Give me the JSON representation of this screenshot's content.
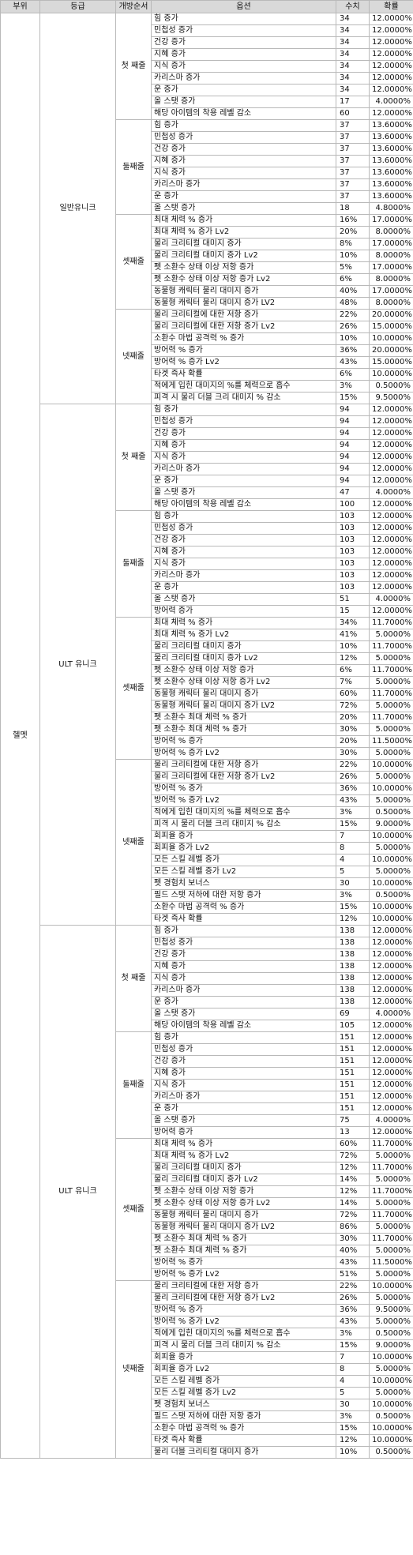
{
  "headers": [
    "부위",
    "등급",
    "개방순서",
    "옵션",
    "수치",
    "확률"
  ],
  "part": "헬멧",
  "grades": [
    {
      "grade": "일반유니크",
      "sections": [
        {
          "order": "첫 째줄",
          "rows": [
            [
              "힘 증가",
              "34",
              "12.0000%"
            ],
            [
              "민첩성 증가",
              "34",
              "12.0000%"
            ],
            [
              "건강 증가",
              "34",
              "12.0000%"
            ],
            [
              "지혜 증가",
              "34",
              "12.0000%"
            ],
            [
              "지식 증가",
              "34",
              "12.0000%"
            ],
            [
              "카리스마 증가",
              "34",
              "12.0000%"
            ],
            [
              "운 증가",
              "34",
              "12.0000%"
            ],
            [
              "올 스탯 증가",
              "17",
              "4.0000%"
            ],
            [
              "해당 아이템의 착용 레벨 감소",
              "60",
              "12.0000%"
            ]
          ]
        },
        {
          "order": "둘째줄",
          "rows": [
            [
              "힘 증가",
              "37",
              "13.6000%"
            ],
            [
              "민첩성 증가",
              "37",
              "13.6000%"
            ],
            [
              "건강 증가",
              "37",
              "13.6000%"
            ],
            [
              "지혜 증가",
              "37",
              "13.6000%"
            ],
            [
              "지식 증가",
              "37",
              "13.6000%"
            ],
            [
              "카리스마 증가",
              "37",
              "13.6000%"
            ],
            [
              "운 증가",
              "37",
              "13.6000%"
            ],
            [
              "올 스탯 증가",
              "18",
              "4.8000%"
            ]
          ]
        },
        {
          "order": "셋째줄",
          "rows": [
            [
              "최대 체력 % 증가",
              "16%",
              "17.0000%"
            ],
            [
              "최대 체력 % 증가 Lv2",
              "20%",
              "8.0000%"
            ],
            [
              "물리 크리티컬 대미지 증가",
              "8%",
              "17.0000%"
            ],
            [
              "물리 크리티컬 대미지 증가 Lv2",
              "10%",
              "8.0000%"
            ],
            [
              "펫 소환수 상태 이상 저항 증가",
              "5%",
              "17.0000%"
            ],
            [
              "펫 소환수 상태 이상 저항 증가 Lv2",
              "6%",
              "8.0000%"
            ],
            [
              "동물형 캐릭터 물리 대미지 증가",
              "40%",
              "17.0000%"
            ],
            [
              "동물형 캐릭터 물리 대미지 증가 LV2",
              "48%",
              "8.0000%"
            ]
          ]
        },
        {
          "order": "넷째줄",
          "rows": [
            [
              "물리 크리티컬에 대한 저항 증가",
              "22%",
              "20.0000%"
            ],
            [
              "물리 크리티컬에 대한 저항 증가 Lv2",
              "26%",
              "15.0000%"
            ],
            [
              "소환수 마법 공격력 % 증가",
              "10%",
              "10.0000%"
            ],
            [
              "방어력 % 증가",
              "36%",
              "20.0000%"
            ],
            [
              "방어력 % 증가 Lv2",
              "43%",
              "15.0000%"
            ],
            [
              "타겟 즉사 확률",
              "6%",
              "10.0000%"
            ],
            [
              "적에게 입힌 대미지의 %를 체력으로 흡수",
              "3%",
              "0.5000%"
            ],
            [
              "피격 시 물리 더블 크리 대미지 % 감소",
              "15%",
              "9.5000%"
            ]
          ]
        }
      ]
    },
    {
      "grade": "ULT 유니크",
      "sections": [
        {
          "order": "첫 째줄",
          "rows": [
            [
              "힘 증가",
              "94",
              "12.0000%"
            ],
            [
              "민첩성 증가",
              "94",
              "12.0000%"
            ],
            [
              "건강 증가",
              "94",
              "12.0000%"
            ],
            [
              "지혜 증가",
              "94",
              "12.0000%"
            ],
            [
              "지식 증가",
              "94",
              "12.0000%"
            ],
            [
              "카리스마 증가",
              "94",
              "12.0000%"
            ],
            [
              "운 증가",
              "94",
              "12.0000%"
            ],
            [
              "올 스탯 증가",
              "47",
              "4.0000%"
            ],
            [
              "해당 아이템의 착용 레벨 감소",
              "100",
              "12.0000%"
            ]
          ]
        },
        {
          "order": "둘째줄",
          "rows": [
            [
              "힘 증가",
              "103",
              "12.0000%"
            ],
            [
              "민첩성 증가",
              "103",
              "12.0000%"
            ],
            [
              "건강 증가",
              "103",
              "12.0000%"
            ],
            [
              "지혜 증가",
              "103",
              "12.0000%"
            ],
            [
              "지식 증가",
              "103",
              "12.0000%"
            ],
            [
              "카리스마 증가",
              "103",
              "12.0000%"
            ],
            [
              "운 증가",
              "103",
              "12.0000%"
            ],
            [
              "올 스탯 증가",
              "51",
              "4.0000%"
            ],
            [
              "방어력 증가",
              "15",
              "12.0000%"
            ]
          ]
        },
        {
          "order": "셋째줄",
          "rows": [
            [
              "최대 체력 % 증가",
              "34%",
              "11.7000%"
            ],
            [
              "최대 체력 % 증가 Lv2",
              "41%",
              "5.0000%"
            ],
            [
              "물리 크리티컬 대미지 증가",
              "10%",
              "11.7000%"
            ],
            [
              "물리 크리티컬 대미지 증가 Lv2",
              "12%",
              "5.0000%"
            ],
            [
              "펫 소환수 상태 이상 저항 증가",
              "6%",
              "11.7000%"
            ],
            [
              "펫 소환수 상태 이상 저항 증가 Lv2",
              "7%",
              "5.0000%"
            ],
            [
              "동물형 캐릭터 물리 대미지 증가",
              "60%",
              "11.7000%"
            ],
            [
              "동물형 캐릭터 물리 대미지 증가 LV2",
              "72%",
              "5.0000%"
            ],
            [
              "펫 소환수 최대 체력 % 증가",
              "20%",
              "11.7000%"
            ],
            [
              "펫 소환수 최대 체력 % 증가",
              "30%",
              "5.0000%"
            ],
            [
              "방어력 % 증가",
              "20%",
              "11.5000%"
            ],
            [
              "방어력 % 증가 Lv2",
              "30%",
              "5.0000%"
            ]
          ]
        },
        {
          "order": "넷째줄",
          "rows": [
            [
              "물리 크리티컬에 대한 저항 증가",
              "22%",
              "10.0000%"
            ],
            [
              "물리 크리티컬에 대한 저항 증가 Lv2",
              "26%",
              "5.0000%"
            ],
            [
              "방어력 % 증가",
              "36%",
              "10.0000%"
            ],
            [
              "방어력 % 증가 Lv2",
              "43%",
              "5.0000%"
            ],
            [
              "적에게 입힌 대미지의 %를 체력으로 흡수",
              "3%",
              "0.5000%"
            ],
            [
              "피격 시 물리 더블 크리 대미지 % 감소",
              "15%",
              "9.0000%"
            ],
            [
              "회피율 증가",
              "7",
              "10.0000%"
            ],
            [
              "회피율 증가 Lv2",
              "8",
              "5.0000%"
            ],
            [
              "모든 스킬 레벨 증가",
              "4",
              "10.0000%"
            ],
            [
              "모든 스킬 레벨 증가 Lv2",
              "5",
              "5.0000%"
            ],
            [
              "펫 경험치 보너스",
              "30",
              "10.0000%"
            ],
            [
              "필드 스탯 저하에 대한 저항 증가",
              "3%",
              "0.5000%"
            ],
            [
              "소환수 마법 공격력 % 증가",
              "15%",
              "10.0000%"
            ],
            [
              "타겟 즉사 확률",
              "12%",
              "10.0000%"
            ]
          ]
        }
      ]
    },
    {
      "grade": "ULT 유니크",
      "sections": [
        {
          "order": "첫 째줄",
          "rows": [
            [
              "힘 증가",
              "138",
              "12.0000%"
            ],
            [
              "민첩성 증가",
              "138",
              "12.0000%"
            ],
            [
              "건강 증가",
              "138",
              "12.0000%"
            ],
            [
              "지혜 증가",
              "138",
              "12.0000%"
            ],
            [
              "지식 증가",
              "138",
              "12.0000%"
            ],
            [
              "카리스마 증가",
              "138",
              "12.0000%"
            ],
            [
              "운 증가",
              "138",
              "12.0000%"
            ],
            [
              "올 스탯 증가",
              "69",
              "4.0000%"
            ],
            [
              "해당 아이템의 착용 레벨 감소",
              "105",
              "12.0000%"
            ]
          ]
        },
        {
          "order": "둘째줄",
          "rows": [
            [
              "힘 증가",
              "151",
              "12.0000%"
            ],
            [
              "민첩성 증가",
              "151",
              "12.0000%"
            ],
            [
              "건강 증가",
              "151",
              "12.0000%"
            ],
            [
              "지혜 증가",
              "151",
              "12.0000%"
            ],
            [
              "지식 증가",
              "151",
              "12.0000%"
            ],
            [
              "카리스마 증가",
              "151",
              "12.0000%"
            ],
            [
              "운 증가",
              "151",
              "12.0000%"
            ],
            [
              "올 스탯 증가",
              "75",
              "4.0000%"
            ],
            [
              "방어력 증가",
              "13",
              "12.0000%"
            ]
          ]
        },
        {
          "order": "셋째줄",
          "rows": [
            [
              "최대 체력 % 증가",
              "60%",
              "11.7000%"
            ],
            [
              "최대 체력 % 증가 Lv2",
              "72%",
              "5.0000%"
            ],
            [
              "물리 크리티컬 대미지 증가",
              "12%",
              "11.7000%"
            ],
            [
              "물리 크리티컬 대미지 증가 Lv2",
              "14%",
              "5.0000%"
            ],
            [
              "펫 소환수 상태 이상 저항 증가",
              "12%",
              "11.7000%"
            ],
            [
              "펫 소환수 상태 이상 저항 증가 Lv2",
              "14%",
              "5.0000%"
            ],
            [
              "동물형 캐릭터 물리 대미지 증가",
              "72%",
              "11.7000%"
            ],
            [
              "동물형 캐릭터 물리 대미지 증가 LV2",
              "86%",
              "5.0000%"
            ],
            [
              "펫 소환수 최대 체력 % 증가",
              "30%",
              "11.7000%"
            ],
            [
              "펫 소환수 최대 체력 % 증가",
              "40%",
              "5.0000%"
            ],
            [
              "방어력 % 증가",
              "43%",
              "11.5000%"
            ],
            [
              "방어력 % 증가 Lv2",
              "51%",
              "5.0000%"
            ]
          ]
        },
        {
          "order": "넷째줄",
          "rows": [
            [
              "물리 크리티컬에 대한 저항 증가",
              "22%",
              "10.0000%"
            ],
            [
              "물리 크리티컬에 대한 저항 증가 Lv2",
              "26%",
              "5.0000%"
            ],
            [
              "방어력 % 증가",
              "36%",
              "9.5000%"
            ],
            [
              "방어력 % 증가 Lv2",
              "43%",
              "5.0000%"
            ],
            [
              "적에게 입힌 대미지의 %를 체력으로 흡수",
              "3%",
              "0.5000%"
            ],
            [
              "피격 시 물리 더블 크리 대미지 % 감소",
              "15%",
              "9.0000%"
            ],
            [
              "회피율 증가",
              "7",
              "10.0000%"
            ],
            [
              "회피율 증가 Lv2",
              "8",
              "5.0000%"
            ],
            [
              "모든 스킬 레벨 증가",
              "4",
              "10.0000%"
            ],
            [
              "모든 스킬 레벨 증가 Lv2",
              "5",
              "5.0000%"
            ],
            [
              "펫 경험치 보너스",
              "30",
              "10.0000%"
            ],
            [
              "필드 스탯 저하에 대한 저항 증가",
              "3%",
              "0.5000%"
            ],
            [
              "소환수 마법 공격력 % 증가",
              "15%",
              "10.0000%"
            ],
            [
              "타겟 즉사 확률",
              "12%",
              "10.0000%"
            ],
            [
              "물리 더블 크리티컬 대미지 증가",
              "10%",
              "0.5000%"
            ]
          ]
        }
      ]
    }
  ]
}
